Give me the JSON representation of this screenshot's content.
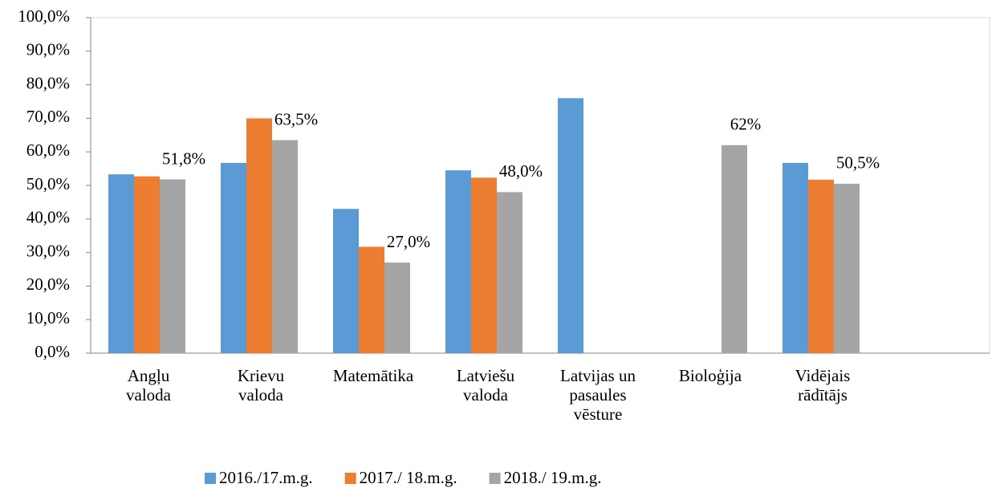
{
  "chart_data": {
    "type": "bar",
    "categories": [
      "Angļu\nvaloda",
      "Krievu\nvaloda",
      "Matemātika",
      "Latviešu\nvaloda",
      "Latvijas un\npasaules\nvēsture",
      "Bioloģija",
      "Vidējais\nrādītājs",
      null
    ],
    "series": [
      {
        "name": "2016./17.m.g.",
        "color": "#5b9bd5",
        "values": [
          53.3,
          56.7,
          43.0,
          54.5,
          76.0,
          null,
          56.7,
          null
        ]
      },
      {
        "name": "2017./ 18.m.g.",
        "color": "#ed7d31",
        "values": [
          52.7,
          70.0,
          31.7,
          52.3,
          null,
          null,
          51.7,
          null
        ]
      },
      {
        "name": "2018./ 19.m.g.",
        "color": "#a5a5a5",
        "values": [
          51.8,
          63.5,
          27.0,
          48.0,
          null,
          62,
          50.5,
          null
        ],
        "value_labels": [
          "51,8%",
          "63,5%",
          "27,0%",
          "48,0%",
          null,
          "62%",
          "50,5%",
          null
        ]
      }
    ],
    "ylim": [
      0,
      100
    ],
    "yticks": [
      {
        "value": 0,
        "label": "0,0%"
      },
      {
        "value": 10,
        "label": "10,0%"
      },
      {
        "value": 20,
        "label": "20,0%"
      },
      {
        "value": 30,
        "label": "30,0%"
      },
      {
        "value": 40,
        "label": "40,0%"
      },
      {
        "value": 50,
        "label": "50,0%"
      },
      {
        "value": 60,
        "label": "60,0%"
      },
      {
        "value": 70,
        "label": "70,0%"
      },
      {
        "value": 80,
        "label": "80,0%"
      },
      {
        "value": 90,
        "label": "90,0%"
      },
      {
        "value": 100,
        "label": "100,0%"
      }
    ],
    "grid": false,
    "legend": "bottom"
  }
}
